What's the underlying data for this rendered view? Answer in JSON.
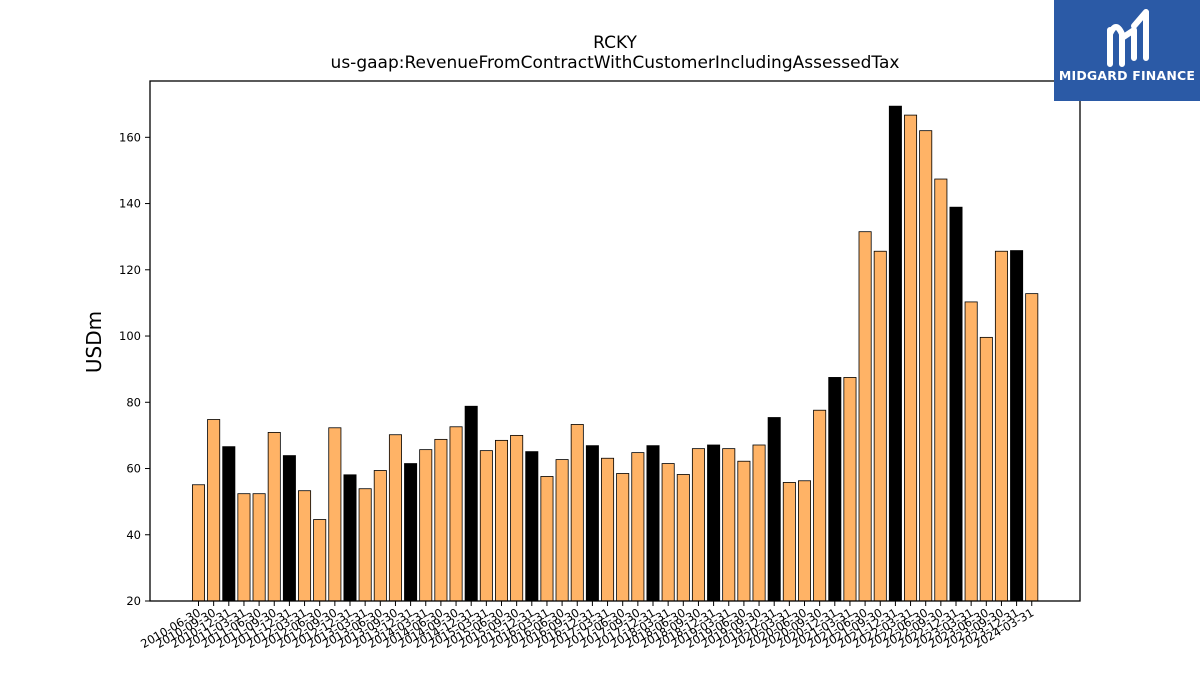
{
  "chart_data": {
    "type": "bar",
    "title": "RCKY",
    "subtitle": "us-gaap:RevenueFromContractWithCustomerIncludingAssessedTax",
    "xlabel": "",
    "ylabel": "USDm",
    "ylim": [
      20,
      177
    ],
    "yticks": [
      20,
      40,
      60,
      80,
      100,
      120,
      140,
      160
    ],
    "grid": false,
    "colors": {
      "quarter": "#ffb366",
      "year_end": "#000000",
      "edge": "#000000"
    },
    "categories": [
      "2010-06-30",
      "2010-09-30",
      "2010-12-31",
      "2011-03-31",
      "2011-06-30",
      "2011-09-30",
      "2011-12-31",
      "2012-03-31",
      "2012-06-30",
      "2012-09-30",
      "2012-12-31",
      "2013-03-31",
      "2013-06-30",
      "2013-09-30",
      "2013-12-31",
      "2014-03-31",
      "2014-06-30",
      "2014-09-30",
      "2014-12-31",
      "2015-03-31",
      "2015-06-30",
      "2015-09-30",
      "2015-12-31",
      "2016-03-31",
      "2016-06-30",
      "2016-09-30",
      "2016-12-31",
      "2017-03-31",
      "2017-06-30",
      "2017-09-30",
      "2017-12-31",
      "2018-03-31",
      "2018-06-30",
      "2018-09-30",
      "2018-12-31",
      "2019-03-31",
      "2019-06-30",
      "2019-09-30",
      "2019-12-31",
      "2020-03-31",
      "2020-06-30",
      "2020-09-30",
      "2020-12-31",
      "2021-03-31",
      "2021-06-30",
      "2021-09-30",
      "2021-12-31",
      "2022-03-31",
      "2022-06-30",
      "2022-09-30",
      "2022-12-31",
      "2023-03-31",
      "2023-06-30",
      "2023-09-30",
      "2023-12-31",
      "2024-03-31"
    ],
    "values": [
      55.1,
      74.8,
      66.6,
      52.4,
      52.4,
      70.9,
      63.9,
      53.3,
      44.6,
      72.3,
      58.1,
      53.9,
      59.4,
      70.2,
      61.5,
      65.7,
      68.8,
      72.6,
      78.8,
      65.4,
      68.5,
      70.0,
      65.1,
      57.6,
      62.7,
      73.3,
      66.9,
      63.1,
      58.5,
      64.8,
      66.9,
      61.5,
      58.2,
      66.0,
      67.1,
      66.0,
      62.2,
      67.1,
      75.4,
      55.8,
      56.3,
      77.6,
      87.5,
      87.5,
      131.5,
      125.6,
      169.4,
      166.7,
      162.0,
      147.4,
      138.9,
      110.3,
      99.6,
      125.6,
      125.8,
      112.8
    ],
    "highlight": [
      false,
      false,
      true,
      false,
      false,
      false,
      true,
      false,
      false,
      false,
      true,
      false,
      false,
      false,
      true,
      false,
      false,
      false,
      true,
      false,
      false,
      false,
      true,
      false,
      false,
      false,
      true,
      false,
      false,
      false,
      true,
      false,
      false,
      false,
      true,
      false,
      false,
      false,
      true,
      false,
      false,
      false,
      true,
      false,
      false,
      false,
      true,
      false,
      false,
      false,
      true,
      false,
      false,
      false,
      true,
      false
    ]
  },
  "logo": {
    "name": "MIDGARD FINANCE",
    "icon": "midgard-logo-mark"
  }
}
